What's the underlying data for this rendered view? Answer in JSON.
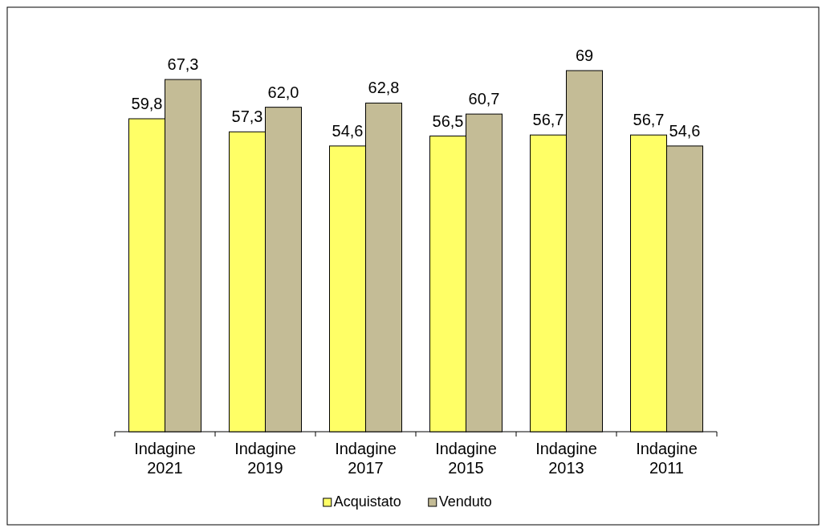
{
  "chart_data": {
    "type": "bar",
    "categories": [
      "Indagine 2021",
      "Indagine 2019",
      "Indagine 2017",
      "Indagine 2015",
      "Indagine 2013",
      "Indagine 2011"
    ],
    "series": [
      {
        "name": "Acquistato",
        "color": "#ffff66",
        "values": [
          59.8,
          57.3,
          54.6,
          56.5,
          56.7,
          56.7
        ],
        "value_labels": [
          "59,8",
          "57,3",
          "54,6",
          "56,5",
          "56,7",
          "56,7"
        ]
      },
      {
        "name": "Venduto",
        "color": "#c4bc96",
        "values": [
          67.3,
          62.0,
          62.8,
          60.7,
          69,
          54.6
        ],
        "value_labels": [
          "67,3",
          "62,0",
          "62,8",
          "60,7",
          "69",
          "54,6"
        ]
      }
    ],
    "legend": "bottom"
  }
}
